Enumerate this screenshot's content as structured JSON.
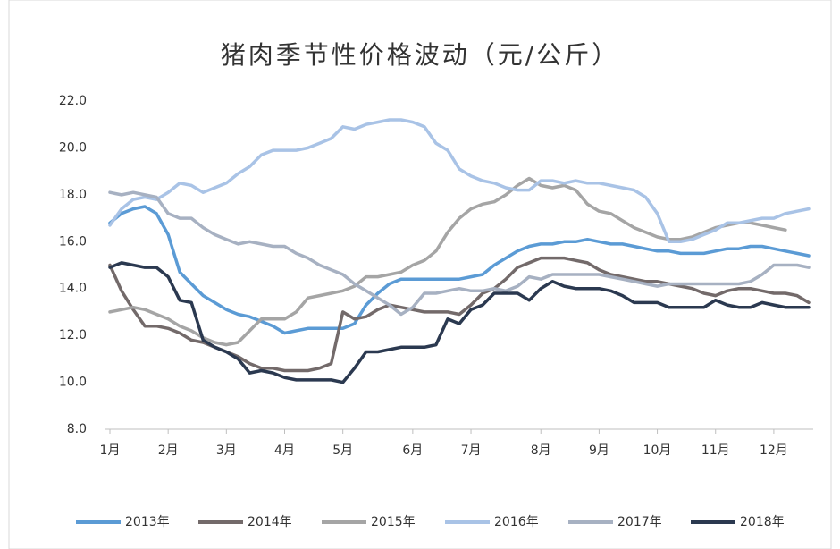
{
  "chart_data": {
    "type": "line",
    "title": "猪肉季节性价格波动（元/公斤）",
    "categories": [
      "1月",
      null,
      null,
      null,
      null,
      "2月",
      null,
      null,
      null,
      null,
      "3月",
      null,
      null,
      null,
      null,
      "4月",
      null,
      null,
      null,
      null,
      "5月",
      null,
      null,
      null,
      null,
      null,
      "6月",
      null,
      null,
      null,
      null,
      "7月",
      null,
      null,
      null,
      null,
      null,
      "8月",
      null,
      null,
      null,
      null,
      "9月",
      null,
      null,
      null,
      null,
      "10月",
      null,
      null,
      null,
      null,
      "11月",
      null,
      null,
      null,
      null,
      "12月",
      null,
      null,
      null
    ],
    "ylim": [
      8,
      22
    ],
    "yticks": [
      {
        "value": 8,
        "label": "8.0"
      },
      {
        "value": 10,
        "label": "10.0"
      },
      {
        "value": 12,
        "label": "12.0"
      },
      {
        "value": 14,
        "label": "14.0"
      },
      {
        "value": 16,
        "label": "16.0"
      },
      {
        "value": 18,
        "label": "18.0"
      },
      {
        "value": 20,
        "label": "20.0"
      },
      {
        "value": 22,
        "label": "22.0"
      }
    ],
    "legend": "bottom",
    "series": [
      {
        "name": "2013年",
        "color": "#5b9bd5",
        "values": [
          16.8,
          17.2,
          17.4,
          17.5,
          17.2,
          16.3,
          14.7,
          14.2,
          13.7,
          13.4,
          13.1,
          12.9,
          12.8,
          12.6,
          12.4,
          12.1,
          12.2,
          12.3,
          12.3,
          12.3,
          12.3,
          12.5,
          13.3,
          13.8,
          14.2,
          14.4,
          14.4,
          14.4,
          14.4,
          14.4,
          14.4,
          14.5,
          14.6,
          15.0,
          15.3,
          15.6,
          15.8,
          15.9,
          15.9,
          16.0,
          16.0,
          16.1,
          16.0,
          15.9,
          15.9,
          15.8,
          15.7,
          15.6,
          15.6,
          15.5,
          15.5,
          15.5,
          15.6,
          15.7,
          15.7,
          15.8,
          15.8,
          15.7,
          15.6,
          15.5,
          15.4
        ]
      },
      {
        "name": "2014年",
        "color": "#736a6a",
        "values": [
          15.0,
          13.9,
          13.1,
          12.4,
          12.4,
          12.3,
          12.1,
          11.8,
          11.7,
          11.5,
          11.3,
          11.1,
          10.8,
          10.6,
          10.6,
          10.5,
          10.5,
          10.5,
          10.6,
          10.8,
          13.0,
          12.7,
          12.8,
          13.1,
          13.3,
          13.2,
          13.1,
          13.0,
          13.0,
          13.0,
          12.9,
          13.3,
          13.8,
          14.0,
          14.4,
          14.9,
          15.1,
          15.3,
          15.3,
          15.3,
          15.2,
          15.1,
          14.8,
          14.6,
          14.5,
          14.4,
          14.3,
          14.3,
          14.2,
          14.1,
          14.0,
          13.8,
          13.7,
          13.9,
          14.0,
          14.0,
          13.9,
          13.8,
          13.8,
          13.7,
          13.4
        ]
      },
      {
        "name": "2015年",
        "color": "#a5a5a5",
        "values": [
          13.0,
          13.1,
          13.2,
          13.1,
          12.9,
          12.7,
          12.4,
          12.2,
          11.9,
          11.7,
          11.6,
          11.7,
          12.2,
          12.7,
          12.7,
          12.7,
          13.0,
          13.6,
          13.7,
          13.8,
          13.9,
          14.1,
          14.5,
          14.5,
          14.6,
          14.7,
          15.0,
          15.2,
          15.6,
          16.4,
          17.0,
          17.4,
          17.6,
          17.7,
          18.0,
          18.4,
          18.7,
          18.4,
          18.3,
          18.4,
          18.2,
          17.6,
          17.3,
          17.2,
          16.9,
          16.6,
          16.4,
          16.2,
          16.1,
          16.1,
          16.2,
          16.4,
          16.6,
          16.7,
          16.8,
          16.8,
          16.7,
          16.6,
          16.5,
          null,
          null
        ]
      },
      {
        "name": "2016年",
        "color": "#a9c3e6",
        "values": [
          16.7,
          17.4,
          17.8,
          17.9,
          17.8,
          18.1,
          18.5,
          18.4,
          18.1,
          18.3,
          18.5,
          18.9,
          19.2,
          19.7,
          19.9,
          19.9,
          19.9,
          20.0,
          20.2,
          20.4,
          20.9,
          20.8,
          21.0,
          21.1,
          21.2,
          21.2,
          21.1,
          20.9,
          20.2,
          19.9,
          19.1,
          18.8,
          18.6,
          18.5,
          18.3,
          18.2,
          18.2,
          18.6,
          18.6,
          18.5,
          18.6,
          18.5,
          18.5,
          18.4,
          18.3,
          18.2,
          17.9,
          17.2,
          16.0,
          16.0,
          16.1,
          16.3,
          16.5,
          16.8,
          16.8,
          16.9,
          17.0,
          17.0,
          17.2,
          17.3,
          17.4
        ]
      },
      {
        "name": "2017年",
        "color": "#a7b1c2",
        "values": [
          18.1,
          18.0,
          18.1,
          18.0,
          17.9,
          17.2,
          17.0,
          17.0,
          16.6,
          16.3,
          16.1,
          15.9,
          16.0,
          15.9,
          15.8,
          15.8,
          15.5,
          15.3,
          15.0,
          14.8,
          14.6,
          14.2,
          13.9,
          13.6,
          13.3,
          12.9,
          13.2,
          13.8,
          13.8,
          13.9,
          14.0,
          13.9,
          13.9,
          14.0,
          13.9,
          14.1,
          14.5,
          14.4,
          14.6,
          14.6,
          14.6,
          14.6,
          14.6,
          14.5,
          14.4,
          14.3,
          14.2,
          14.1,
          14.2,
          14.2,
          14.2,
          14.2,
          14.2,
          14.2,
          14.2,
          14.3,
          14.6,
          15.0,
          15.0,
          15.0,
          14.9
        ]
      },
      {
        "name": "2018年",
        "color": "#2b3950",
        "values": [
          14.9,
          15.1,
          15.0,
          14.9,
          14.9,
          14.5,
          13.5,
          13.4,
          11.8,
          11.5,
          11.3,
          11.0,
          10.4,
          10.5,
          10.4,
          10.2,
          10.1,
          10.1,
          10.1,
          10.1,
          10.0,
          10.6,
          11.3,
          11.3,
          11.4,
          11.5,
          11.5,
          11.5,
          11.6,
          12.7,
          12.5,
          13.1,
          13.3,
          13.8,
          13.8,
          13.8,
          13.5,
          14.0,
          14.3,
          14.1,
          14.0,
          14.0,
          14.0,
          13.9,
          13.7,
          13.4,
          13.4,
          13.4,
          13.2,
          13.2,
          13.2,
          13.2,
          13.5,
          13.3,
          13.2,
          13.2,
          13.4,
          13.3,
          13.2,
          13.2,
          13.2
        ]
      }
    ]
  }
}
